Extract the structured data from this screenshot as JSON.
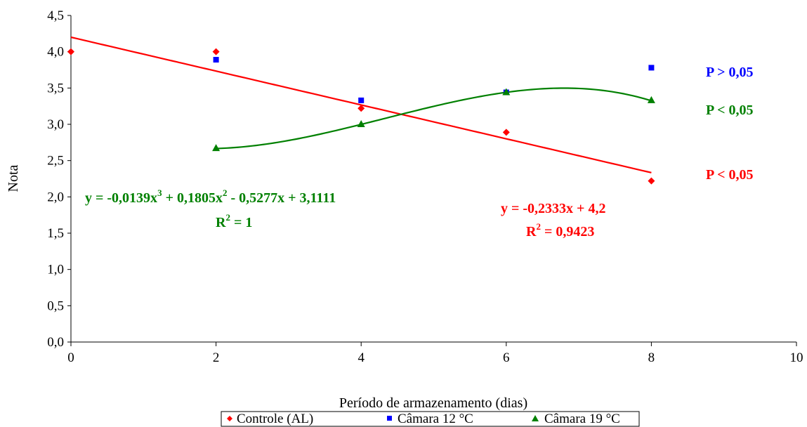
{
  "chart_data": {
    "type": "scatter",
    "xlabel": "Período de armazenamento (dias)",
    "ylabel": "Nota",
    "xlim": [
      0,
      10
    ],
    "ylim": [
      0,
      4.5
    ],
    "xticks": [
      0,
      2,
      4,
      6,
      8,
      10
    ],
    "xtick_labels": [
      "0",
      "2",
      "4",
      "6",
      "8",
      "10"
    ],
    "yticks": [
      0,
      0.5,
      1,
      1.5,
      2,
      2.5,
      3,
      3.5,
      4,
      4.5
    ],
    "ytick_labels": [
      "0,0",
      "0,5",
      "1,0",
      "1,5",
      "2,0",
      "2,5",
      "3,0",
      "3,5",
      "4,0",
      "4,5"
    ],
    "grid": false,
    "legend_position": "bottom",
    "series": [
      {
        "name": "Controle (AL)",
        "marker": "diamond",
        "color": "#ff0000",
        "x": [
          0,
          2,
          4,
          6,
          8
        ],
        "y": [
          4.0,
          4.0,
          3.22,
          2.89,
          2.22
        ],
        "fit": {
          "type": "linear",
          "coefficients": [
            -0.2333,
            4.2
          ],
          "x_range": [
            0,
            8
          ]
        },
        "equation_text": "y = -0,2333x + 4,2",
        "r2_label": "R",
        "r2_sup": "2",
        "r2_value": " = 0,9423",
        "p_label": "P < 0,05"
      },
      {
        "name": "Câmara 12 °C",
        "marker": "square",
        "color": "#0000ff",
        "x": [
          2,
          4,
          6,
          8
        ],
        "y": [
          3.89,
          3.33,
          3.44,
          3.78
        ],
        "p_label": "P > 0,05"
      },
      {
        "name": "Câmara 19 °C",
        "marker": "triangle",
        "color": "#008000",
        "x": [
          2,
          4,
          6,
          8
        ],
        "y": [
          2.67,
          3.0,
          3.44,
          3.33
        ],
        "fit": {
          "type": "cubic",
          "coefficients": [
            -0.0139,
            0.1805,
            -0.5277,
            3.1111
          ],
          "x_range": [
            2,
            8
          ]
        },
        "equation_parts": [
          "y = -0,0139x",
          "3",
          " + 0,1805x",
          "2",
          " - 0,5277x + 3,1111"
        ],
        "r2_label": "R",
        "r2_sup": "2",
        "r2_value": " = 1",
        "p_label": "P < 0,05"
      }
    ]
  }
}
